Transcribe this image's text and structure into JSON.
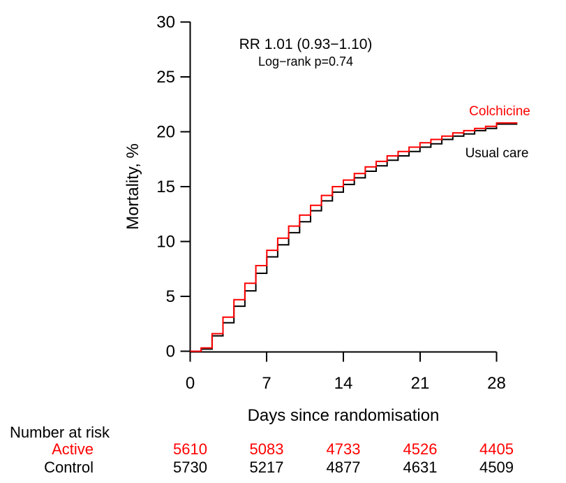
{
  "annotation": {
    "line1": "RR 1.01 (0.93−1.10)",
    "line2": "Log−rank p=0.74"
  },
  "chart_data": {
    "type": "line",
    "subtype": "kaplan-meier-step",
    "title": "",
    "xlabel": "Days since randomisation",
    "ylabel": "Mortality, %",
    "xlim": [
      0,
      28
    ],
    "ylim": [
      0,
      30
    ],
    "x_ticks": [
      0,
      7,
      14,
      21,
      28
    ],
    "y_ticks": [
      0,
      5,
      10,
      15,
      20,
      25,
      30
    ],
    "grid": false,
    "legend_position": "labels-at-line-end",
    "annotations": [
      "RR 1.01 (0.93−1.10)",
      "Log−rank p=0.74"
    ],
    "x": [
      0,
      1,
      2,
      3,
      4,
      5,
      6,
      7,
      8,
      9,
      10,
      11,
      12,
      13,
      14,
      15,
      16,
      17,
      18,
      19,
      20,
      21,
      22,
      23,
      24,
      25,
      26,
      27,
      28
    ],
    "series": [
      {
        "name": "Colchicine",
        "color": "#ff0000",
        "values": [
          0,
          0.3,
          1.6,
          3.1,
          4.7,
          6.2,
          7.8,
          9.2,
          10.3,
          11.4,
          12.4,
          13.3,
          14.2,
          15.0,
          15.6,
          16.2,
          16.8,
          17.3,
          17.8,
          18.2,
          18.6,
          19.0,
          19.3,
          19.6,
          19.9,
          20.1,
          20.3,
          20.5,
          20.8
        ]
      },
      {
        "name": "Usual care",
        "color": "#000000",
        "values": [
          0,
          0.2,
          1.4,
          2.6,
          4.1,
          5.5,
          7.1,
          8.6,
          9.7,
          10.8,
          11.8,
          12.8,
          13.7,
          14.5,
          15.2,
          15.8,
          16.4,
          16.9,
          17.4,
          17.8,
          18.2,
          18.6,
          18.9,
          19.3,
          19.6,
          19.8,
          20.1,
          20.3,
          20.7
        ]
      }
    ]
  },
  "risk_table": {
    "title": "Number at risk",
    "days": [
      0,
      7,
      14,
      21,
      28
    ],
    "rows": [
      {
        "label": "Active",
        "color": "#ff0000",
        "values": [
          "5610",
          "5083",
          "4733",
          "4526",
          "4405"
        ]
      },
      {
        "label": "Control",
        "color": "#000000",
        "values": [
          "5730",
          "5217",
          "4877",
          "4631",
          "4509"
        ]
      }
    ]
  }
}
